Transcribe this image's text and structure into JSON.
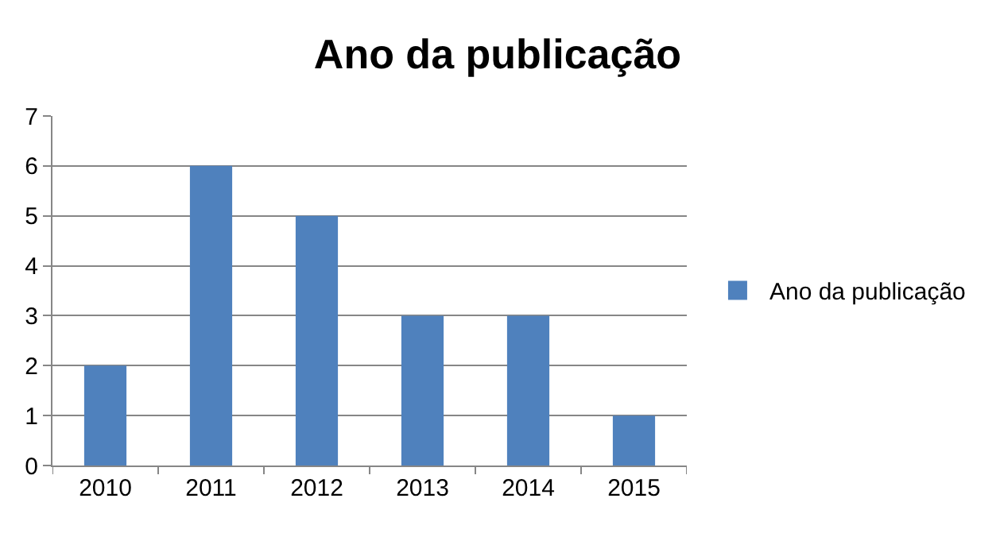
{
  "chart_data": {
    "type": "bar",
    "title": "Ano da publicação",
    "categories": [
      "2010",
      "2011",
      "2012",
      "2013",
      "2014",
      "2015"
    ],
    "series": [
      {
        "name": "Ano da publicação",
        "color": "#4f81bd",
        "values": [
          2,
          6,
          5,
          3,
          3,
          1
        ]
      }
    ],
    "ylim": [
      0,
      7
    ],
    "yticks": [
      0,
      1,
      2,
      3,
      4,
      5,
      6,
      7
    ],
    "grid": "y",
    "legend": "right"
  }
}
